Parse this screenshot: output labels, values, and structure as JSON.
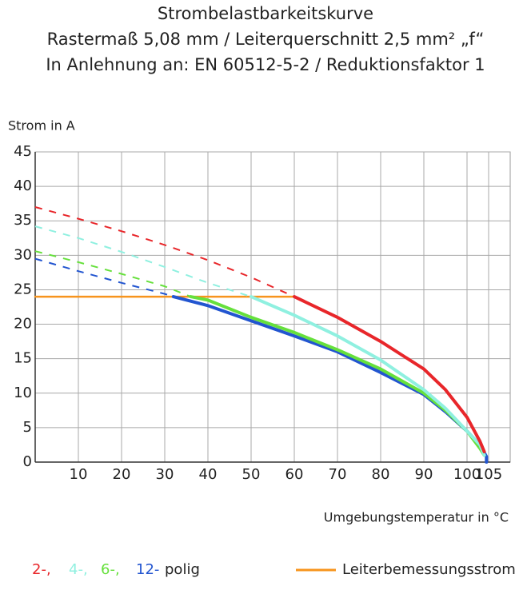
{
  "chart_data": {
    "type": "line",
    "title": [
      "Strombelastbarkeitskurve",
      "Rastermaß 5,08 mm / Leiterquerschnitt 2,5 mm² „f“",
      "In Anlehnung an: EN 60512-5-2 / Reduktionsfaktor 1"
    ],
    "y_label": "Strom in A",
    "x_label": "Umgebungstemperatur in °C",
    "xlim": [
      0,
      110
    ],
    "ylim": [
      0,
      45
    ],
    "xticks": [
      10,
      20,
      30,
      40,
      50,
      60,
      70,
      80,
      90,
      100,
      105
    ],
    "yticks": [
      0,
      5,
      10,
      15,
      20,
      25,
      30,
      35,
      40,
      45
    ],
    "grid": true,
    "legend_suffix": "polig",
    "series": [
      {
        "name": "2-,",
        "color": "#e8262a",
        "dashed": {
          "x": [
            0,
            10,
            20,
            30,
            40,
            50,
            60
          ],
          "values": [
            37,
            35.3,
            33.5,
            31.5,
            29.3,
            26.8,
            24
          ]
        },
        "solid": {
          "x": [
            60,
            70,
            80,
            90,
            95,
            100,
            103,
            104
          ],
          "values": [
            24,
            21,
            17.5,
            13.5,
            10.5,
            6.5,
            3,
            1.5
          ]
        }
      },
      {
        "name": "4-,",
        "color": "#8ff0e0",
        "dashed": {
          "x": [
            0,
            10,
            20,
            30,
            40,
            50
          ],
          "values": [
            34.2,
            32.5,
            30.5,
            28.3,
            26,
            24
          ]
        },
        "solid": {
          "x": [
            50,
            60,
            70,
            80,
            90,
            95,
            100,
            103,
            104
          ],
          "values": [
            24,
            21.3,
            18.3,
            14.8,
            10.5,
            7.8,
            4.5,
            2.5,
            1
          ]
        }
      },
      {
        "name": "6-,",
        "color": "#66e03c",
        "dashed": {
          "x": [
            0,
            10,
            20,
            30,
            36
          ],
          "values": [
            30.6,
            29,
            27.3,
            25.5,
            24
          ]
        },
        "solid": {
          "x": [
            36,
            40,
            50,
            60,
            70,
            80,
            90,
            95,
            100,
            103,
            104
          ],
          "values": [
            24,
            23.5,
            21,
            18.8,
            16.3,
            13.5,
            10,
            7.5,
            4.5,
            2,
            1
          ]
        }
      },
      {
        "name": "12-",
        "color": "#2255d0",
        "dashed": {
          "x": [
            0,
            10,
            20,
            30,
            32
          ],
          "values": [
            29.5,
            27.7,
            26,
            24.4,
            24
          ]
        },
        "solid": {
          "x": [
            32,
            40,
            50,
            60,
            70,
            80,
            90,
            95,
            100,
            103,
            104.5,
            104.5
          ],
          "values": [
            24,
            22.7,
            20.5,
            18.3,
            16,
            13,
            9.8,
            7.3,
            4.5,
            2.5,
            0.8,
            0
          ]
        }
      }
    ],
    "rated_current": {
      "name": "Leiterbemessungsstrom",
      "color": "#f7941d",
      "x": [
        0,
        60
      ],
      "values": [
        24,
        24
      ]
    }
  }
}
